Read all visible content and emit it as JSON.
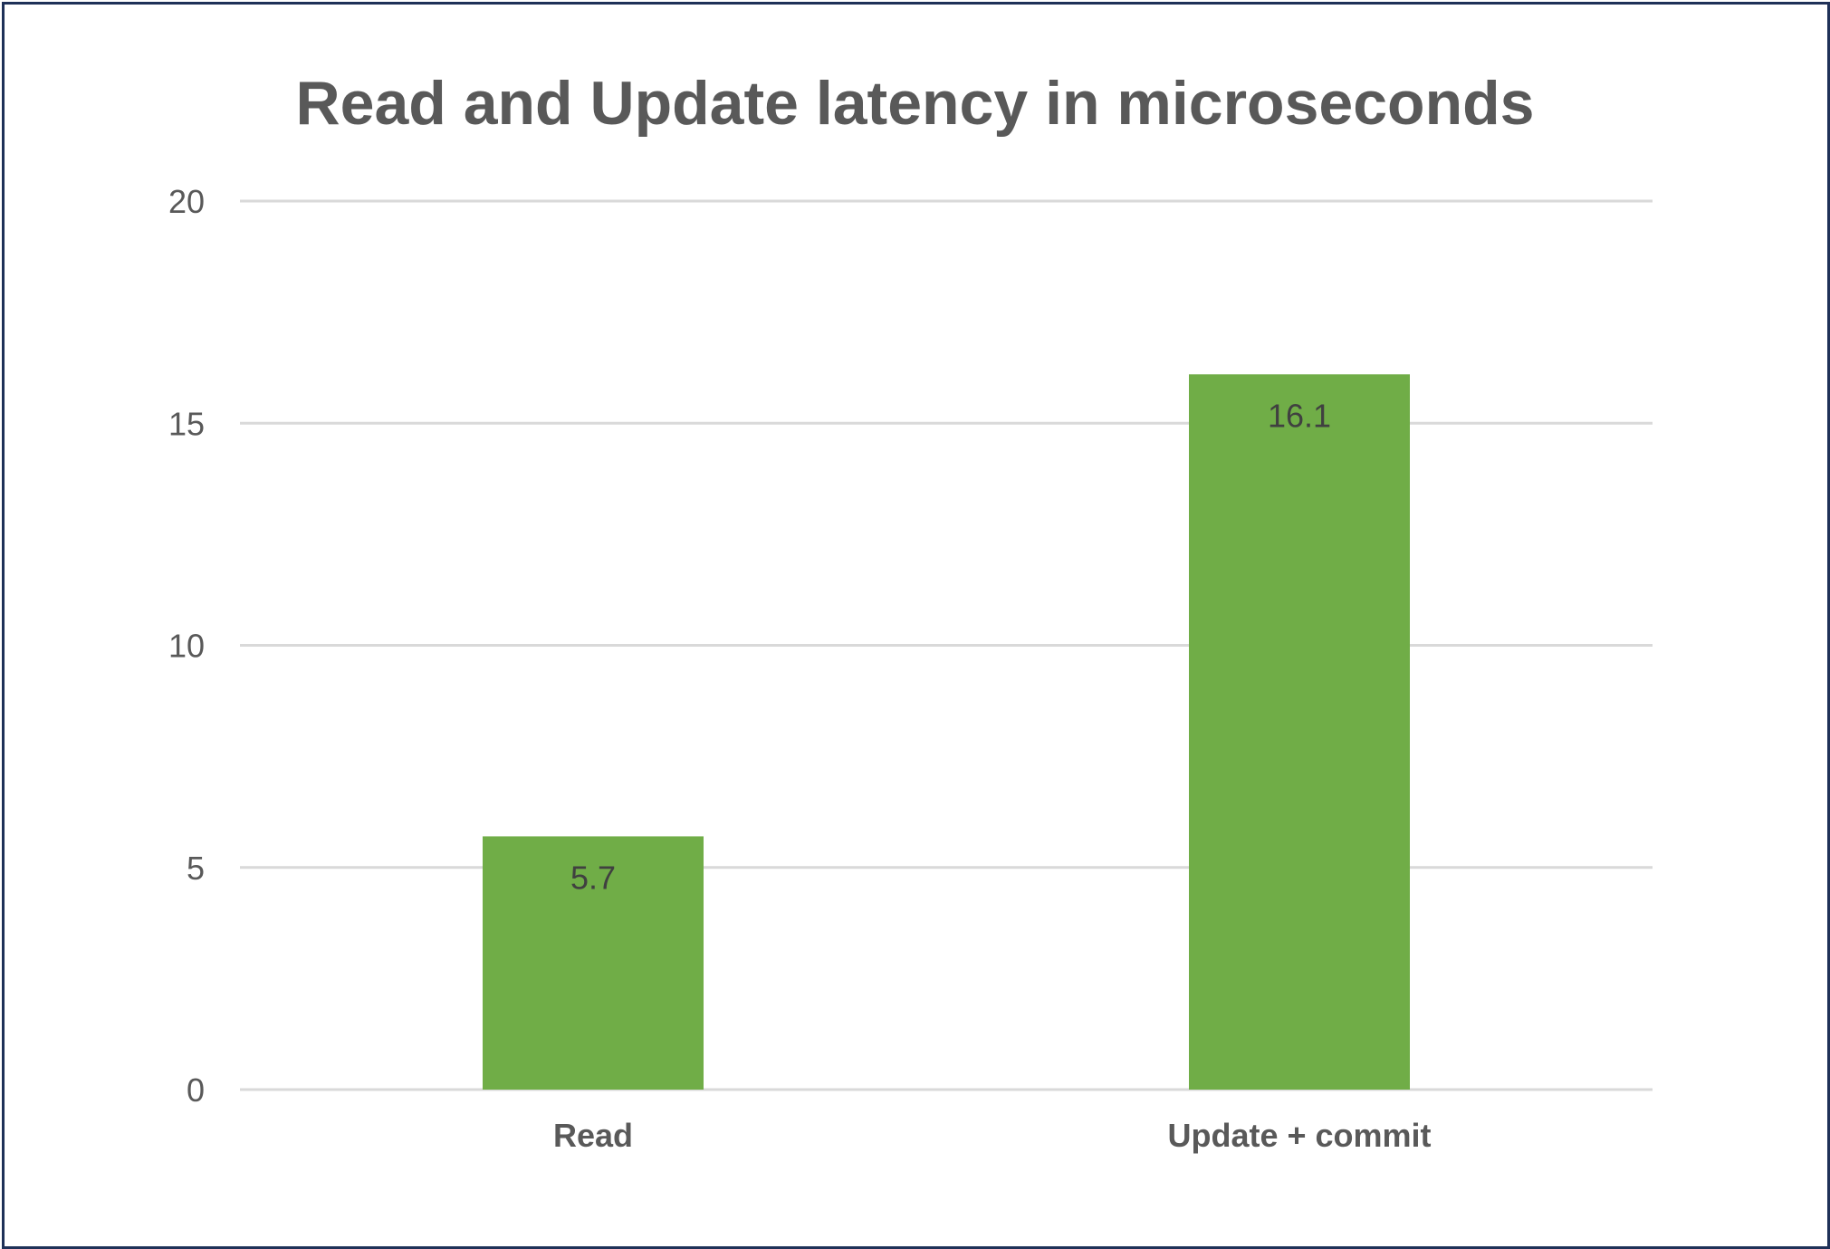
{
  "colors": {
    "bar": "#70ad47",
    "grid": "#d9d9d9",
    "text": "#595959",
    "data_label": "#404040",
    "frame_border": "#1f3158"
  },
  "chart_data": {
    "type": "bar",
    "title": "Read and Update latency in microseconds",
    "xlabel": "",
    "ylabel": "",
    "categories": [
      "Read",
      "Update + commit"
    ],
    "values": [
      5.7,
      16.1
    ],
    "data_labels": [
      "5.7",
      "16.1"
    ],
    "ylim": [
      0,
      20
    ],
    "yticks": [
      0,
      5,
      10,
      15,
      20
    ],
    "ytick_labels": [
      "0",
      "5",
      "10",
      "15",
      "20"
    ],
    "grid": true,
    "legend": "none"
  }
}
